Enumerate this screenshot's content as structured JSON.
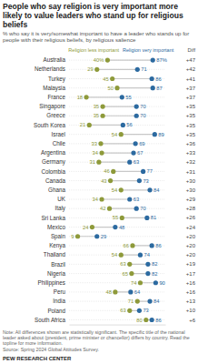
{
  "chart_data": {
    "type": "dot",
    "orientation": "horizontal",
    "title": "People who say religion is very important more likely to value leaders who stand up for religious beliefs",
    "subtitle": "% who say it is very/somewhat important to have a leader who stands up for people with their religious beliefs, by religious salience",
    "categories": [
      "Australia",
      "Netherlands",
      "Turkey",
      "Malaysia",
      "France",
      "Singapore",
      "Greece",
      "South Korea",
      "Israel",
      "Chile",
      "Argentina",
      "Germany",
      "Colombia",
      "Canada",
      "Ghana",
      "UK",
      "Italy",
      "Sri Lanka",
      "Mexico",
      "Spain",
      "Kenya",
      "Thailand",
      "Brazil",
      "Nigeria",
      "Philippines",
      "Peru",
      "India",
      "Poland",
      "South Africa"
    ],
    "series": [
      {
        "name": "Religion less important",
        "color": "#8e9a3a",
        "values": [
          40,
          29,
          45,
          50,
          18,
          35,
          35,
          21,
          54,
          33,
          34,
          31,
          46,
          43,
          54,
          34,
          42,
          55,
          24,
          9,
          66,
          54,
          63,
          65,
          74,
          48,
          71,
          63,
          80
        ],
        "value_labels": [
          "40%",
          "29",
          "45",
          "50",
          "18",
          "35",
          "35",
          "21",
          "54",
          "33",
          "34",
          "31",
          "46",
          "43",
          "54",
          "34",
          "42",
          "55",
          "24",
          "9",
          "66",
          "54",
          "63",
          "65",
          "74",
          "48",
          "71",
          "63",
          "80"
        ]
      },
      {
        "name": "Religion very important",
        "color": "#2c6aa0",
        "values": [
          87,
          71,
          86,
          87,
          55,
          70,
          70,
          56,
          89,
          69,
          67,
          63,
          77,
          73,
          84,
          63,
          70,
          81,
          48,
          29,
          86,
          74,
          82,
          82,
          90,
          64,
          84,
          73,
          86
        ],
        "value_labels": [
          "87%",
          "71",
          "86",
          "87",
          "55",
          "70",
          "70",
          "56",
          "89",
          "69",
          "67",
          "63",
          "77",
          "73",
          "84",
          "63",
          "70",
          "81",
          "48",
          "29",
          "86",
          "74",
          "82",
          "82",
          "90",
          "64",
          "84",
          "73",
          "86"
        ]
      }
    ],
    "differences": {
      "title": "Diff",
      "values": [
        47,
        42,
        41,
        37,
        37,
        35,
        35,
        35,
        35,
        36,
        33,
        32,
        31,
        30,
        30,
        29,
        28,
        26,
        24,
        20,
        20,
        20,
        19,
        17,
        16,
        16,
        13,
        10,
        6
      ],
      "value_labels": [
        "+47",
        "+42",
        "+41",
        "+37",
        "+37",
        "+35",
        "+35",
        "+35",
        "+35",
        "+36",
        "+33",
        "+32",
        "+31",
        "+30",
        "+30",
        "+29",
        "+28",
        "+26",
        "+24",
        "+20",
        "+20",
        "+20",
        "+19",
        "+17",
        "+16",
        "+16",
        "+13",
        "+10",
        "+6"
      ]
    },
    "xlim": [
      0,
      100
    ],
    "xticks": [],
    "tick_labels": false,
    "data_labels": true,
    "legend": "top",
    "note": "Note: All differences shown are statistically significant. The specific title of the national leader asked about (president, prime minister or chancellor) differs by country. Read the topline for more information.",
    "source": "Source: Spring 2024 Global Attitudes Survey.",
    "credit": "PEW RESEARCH CENTER"
  }
}
